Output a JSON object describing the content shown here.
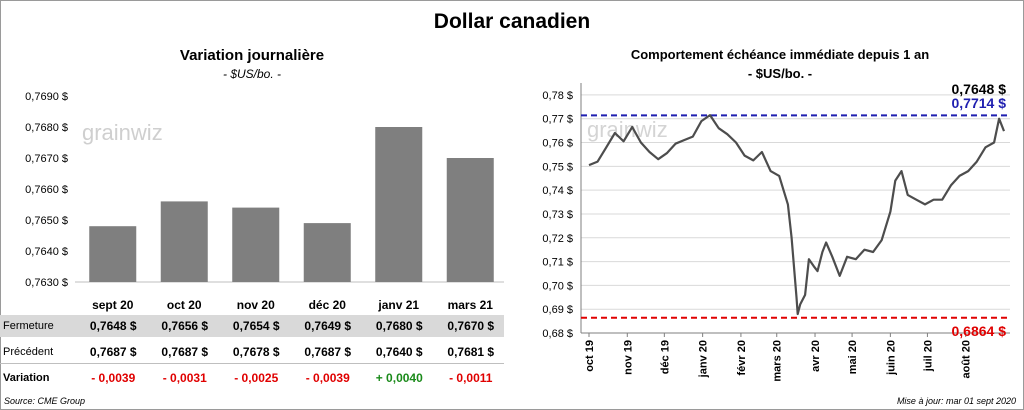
{
  "title": "Dollar canadien",
  "left_chart": {
    "title": "Variation  journalière",
    "subtitle": "- $US/bo. -",
    "watermark": "grainwiz",
    "bar_color": "#7f7f7f",
    "chart_data": {
      "type": "bar",
      "categories": [
        "sept 20",
        "oct 20",
        "nov 20",
        "déc 20",
        "janv 21",
        "mars 21"
      ],
      "values": [
        0.7648,
        0.7656,
        0.7654,
        0.7649,
        0.768,
        0.767
      ],
      "ylim": [
        0.763,
        0.769
      ],
      "yticks": [
        "0,7690 $",
        "0,7680 $",
        "0,7670 $",
        "0,7660 $",
        "0,7650 $",
        "0,7640 $",
        "0,7630 $"
      ],
      "ytick_values": [
        0.769,
        0.768,
        0.767,
        0.766,
        0.765,
        0.764,
        0.763
      ]
    }
  },
  "table": {
    "rows": [
      {
        "label": "Fermeture",
        "values": [
          "0,7648  $",
          "0,7656  $",
          "0,7654  $",
          "0,7649  $",
          "0,7680  $",
          "0,7670  $"
        ]
      },
      {
        "label": "Précédent",
        "values": [
          "0,7687  $",
          "0,7687  $",
          "0,7678  $",
          "0,7687  $",
          "0,7640  $",
          "0,7681  $"
        ]
      },
      {
        "label": "Variation",
        "values": [
          "- 0,0039",
          "- 0,0031",
          "- 0,0025",
          "- 0,0039",
          "+ 0,0040",
          "- 0,0011"
        ]
      }
    ],
    "variation_colors": [
      "#e00000",
      "#e00000",
      "#e00000",
      "#e00000",
      "#1a8a1a",
      "#e00000"
    ],
    "fermeture_bg": "#d9d9d9"
  },
  "right_chart": {
    "title": "Comportement échéance immédiate depuis 1 an",
    "subtitle": "- $US/bo. -",
    "watermark": "grainwiz",
    "line_color": "#4d4d4d",
    "chart_data": {
      "type": "line",
      "ylim": [
        0.68,
        0.785
      ],
      "yticks": [
        "0,78 $",
        "0,77 $",
        "0,76 $",
        "0,75 $",
        "0,74 $",
        "0,73 $",
        "0,72 $",
        "0,71 $",
        "0,70 $",
        "0,69 $",
        "0,68 $"
      ],
      "ytick_values": [
        0.78,
        0.77,
        0.76,
        0.75,
        0.74,
        0.73,
        0.72,
        0.71,
        0.7,
        0.69,
        0.68
      ],
      "xtick_labels": [
        "oct 19",
        "nov 19",
        "déc 19",
        "janv 20",
        "févr 20",
        "mars 20",
        "avr 20",
        "mai 20",
        "juin 20",
        "juil 20",
        "août 20"
      ],
      "x_start": "2019-10-01",
      "x_end": "2020-09-01",
      "series": [
        {
          "values": [
            [
              "2019-10-01",
              0.7505
            ],
            [
              "2019-10-08",
              0.752
            ],
            [
              "2019-10-15",
              0.758
            ],
            [
              "2019-10-22",
              0.764
            ],
            [
              "2019-10-29",
              0.7605
            ],
            [
              "2019-11-05",
              0.7665
            ],
            [
              "2019-11-12",
              0.76
            ],
            [
              "2019-11-19",
              0.756
            ],
            [
              "2019-11-26",
              0.753
            ],
            [
              "2019-12-03",
              0.7555
            ],
            [
              "2019-12-10",
              0.7595
            ],
            [
              "2019-12-17",
              0.761
            ],
            [
              "2019-12-24",
              0.7625
            ],
            [
              "2019-12-31",
              0.769
            ],
            [
              "2020-01-07",
              0.7715
            ],
            [
              "2020-01-14",
              0.766
            ],
            [
              "2020-01-21",
              0.7635
            ],
            [
              "2020-01-28",
              0.76
            ],
            [
              "2020-02-04",
              0.7545
            ],
            [
              "2020-02-11",
              0.7525
            ],
            [
              "2020-02-18",
              0.756
            ],
            [
              "2020-02-25",
              0.748
            ],
            [
              "2020-03-03",
              0.746
            ],
            [
              "2020-03-10",
              0.734
            ],
            [
              "2020-03-13",
              0.72
            ],
            [
              "2020-03-17",
              0.695
            ],
            [
              "2020-03-18",
              0.688
            ],
            [
              "2020-03-20",
              0.692
            ],
            [
              "2020-03-24",
              0.696
            ],
            [
              "2020-03-27",
              0.711
            ],
            [
              "2020-03-31",
              0.708
            ],
            [
              "2020-04-03",
              0.706
            ],
            [
              "2020-04-07",
              0.714
            ],
            [
              "2020-04-10",
              0.718
            ],
            [
              "2020-04-15",
              0.712
            ],
            [
              "2020-04-21",
              0.704
            ],
            [
              "2020-04-27",
              0.712
            ],
            [
              "2020-05-04",
              0.711
            ],
            [
              "2020-05-11",
              0.715
            ],
            [
              "2020-05-18",
              0.714
            ],
            [
              "2020-05-25",
              0.719
            ],
            [
              "2020-06-01",
              0.731
            ],
            [
              "2020-06-05",
              0.744
            ],
            [
              "2020-06-10",
              0.748
            ],
            [
              "2020-06-15",
              0.738
            ],
            [
              "2020-06-22",
              0.736
            ],
            [
              "2020-06-29",
              0.734
            ],
            [
              "2020-07-06",
              0.736
            ],
            [
              "2020-07-13",
              0.736
            ],
            [
              "2020-07-20",
              0.742
            ],
            [
              "2020-07-27",
              0.746
            ],
            [
              "2020-08-03",
              0.748
            ],
            [
              "2020-08-10",
              0.752
            ],
            [
              "2020-08-17",
              0.758
            ],
            [
              "2020-08-24",
              0.76
            ],
            [
              "2020-08-28",
              0.77
            ],
            [
              "2020-09-01",
              0.7648
            ]
          ]
        }
      ],
      "hlines": [
        {
          "value": 0.7714,
          "label": "0,7714  $",
          "color": "#1f1fb0"
        },
        {
          "value": 0.6864,
          "label": "0,6864  $",
          "color": "#e00000"
        }
      ],
      "last_value_label": "0,7648  $"
    }
  },
  "footer": {
    "source": "Source: CME Group",
    "updated": "Mise à jour: mar 01 sept 2020"
  }
}
